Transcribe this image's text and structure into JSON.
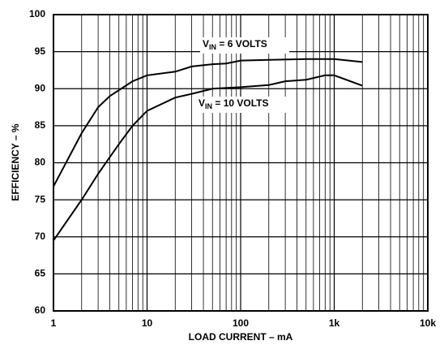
{
  "chart_data": {
    "type": "line",
    "x_label": "LOAD CURRENT – mA",
    "y_label": "EFFICIENCY – %",
    "xscale": "log",
    "xlim": [
      1,
      10000
    ],
    "ylim": [
      60,
      100
    ],
    "xticks": [
      1,
      10,
      100,
      {
        "value": 1000,
        "label": "1k"
      },
      {
        "value": 10000,
        "label": "10k"
      }
    ],
    "xminor": [
      2,
      3,
      4,
      5,
      6,
      7,
      8,
      9,
      20,
      30,
      40,
      50,
      60,
      70,
      80,
      90,
      200,
      300,
      400,
      500,
      600,
      700,
      800,
      900,
      2000,
      3000,
      4000,
      5000,
      6000,
      7000,
      8000,
      9000
    ],
    "yticks": [
      60,
      65,
      70,
      75,
      80,
      85,
      90,
      95,
      100
    ],
    "grid": true,
    "series": [
      {
        "color": "#000000",
        "x": [
          1,
          2,
          3,
          4,
          5,
          7,
          10,
          20,
          30,
          50,
          70,
          100,
          200,
          500,
          1000,
          2000
        ],
        "values": [
          76.8,
          84,
          87.5,
          89,
          89.8,
          91,
          91.8,
          92.3,
          93,
          93.3,
          93.4,
          93.8,
          93.9,
          94,
          94,
          93.6
        ]
      },
      {
        "color": "#000000",
        "x": [
          1,
          2,
          3,
          5,
          7,
          10,
          20,
          30,
          50,
          100,
          200,
          300,
          500,
          800,
          1000,
          2000
        ],
        "values": [
          69.5,
          75,
          78.5,
          82.5,
          85,
          87,
          88.8,
          89.3,
          90,
          90.2,
          90.5,
          91,
          91.2,
          91.8,
          91.8,
          90.4
        ]
      }
    ],
    "annotations": [
      {
        "main": "V",
        "sub": "IN",
        "rest": " = 6 VOLTS"
      },
      {
        "main": "V",
        "sub": "IN",
        "rest": " = 10 VOLTS"
      }
    ]
  }
}
